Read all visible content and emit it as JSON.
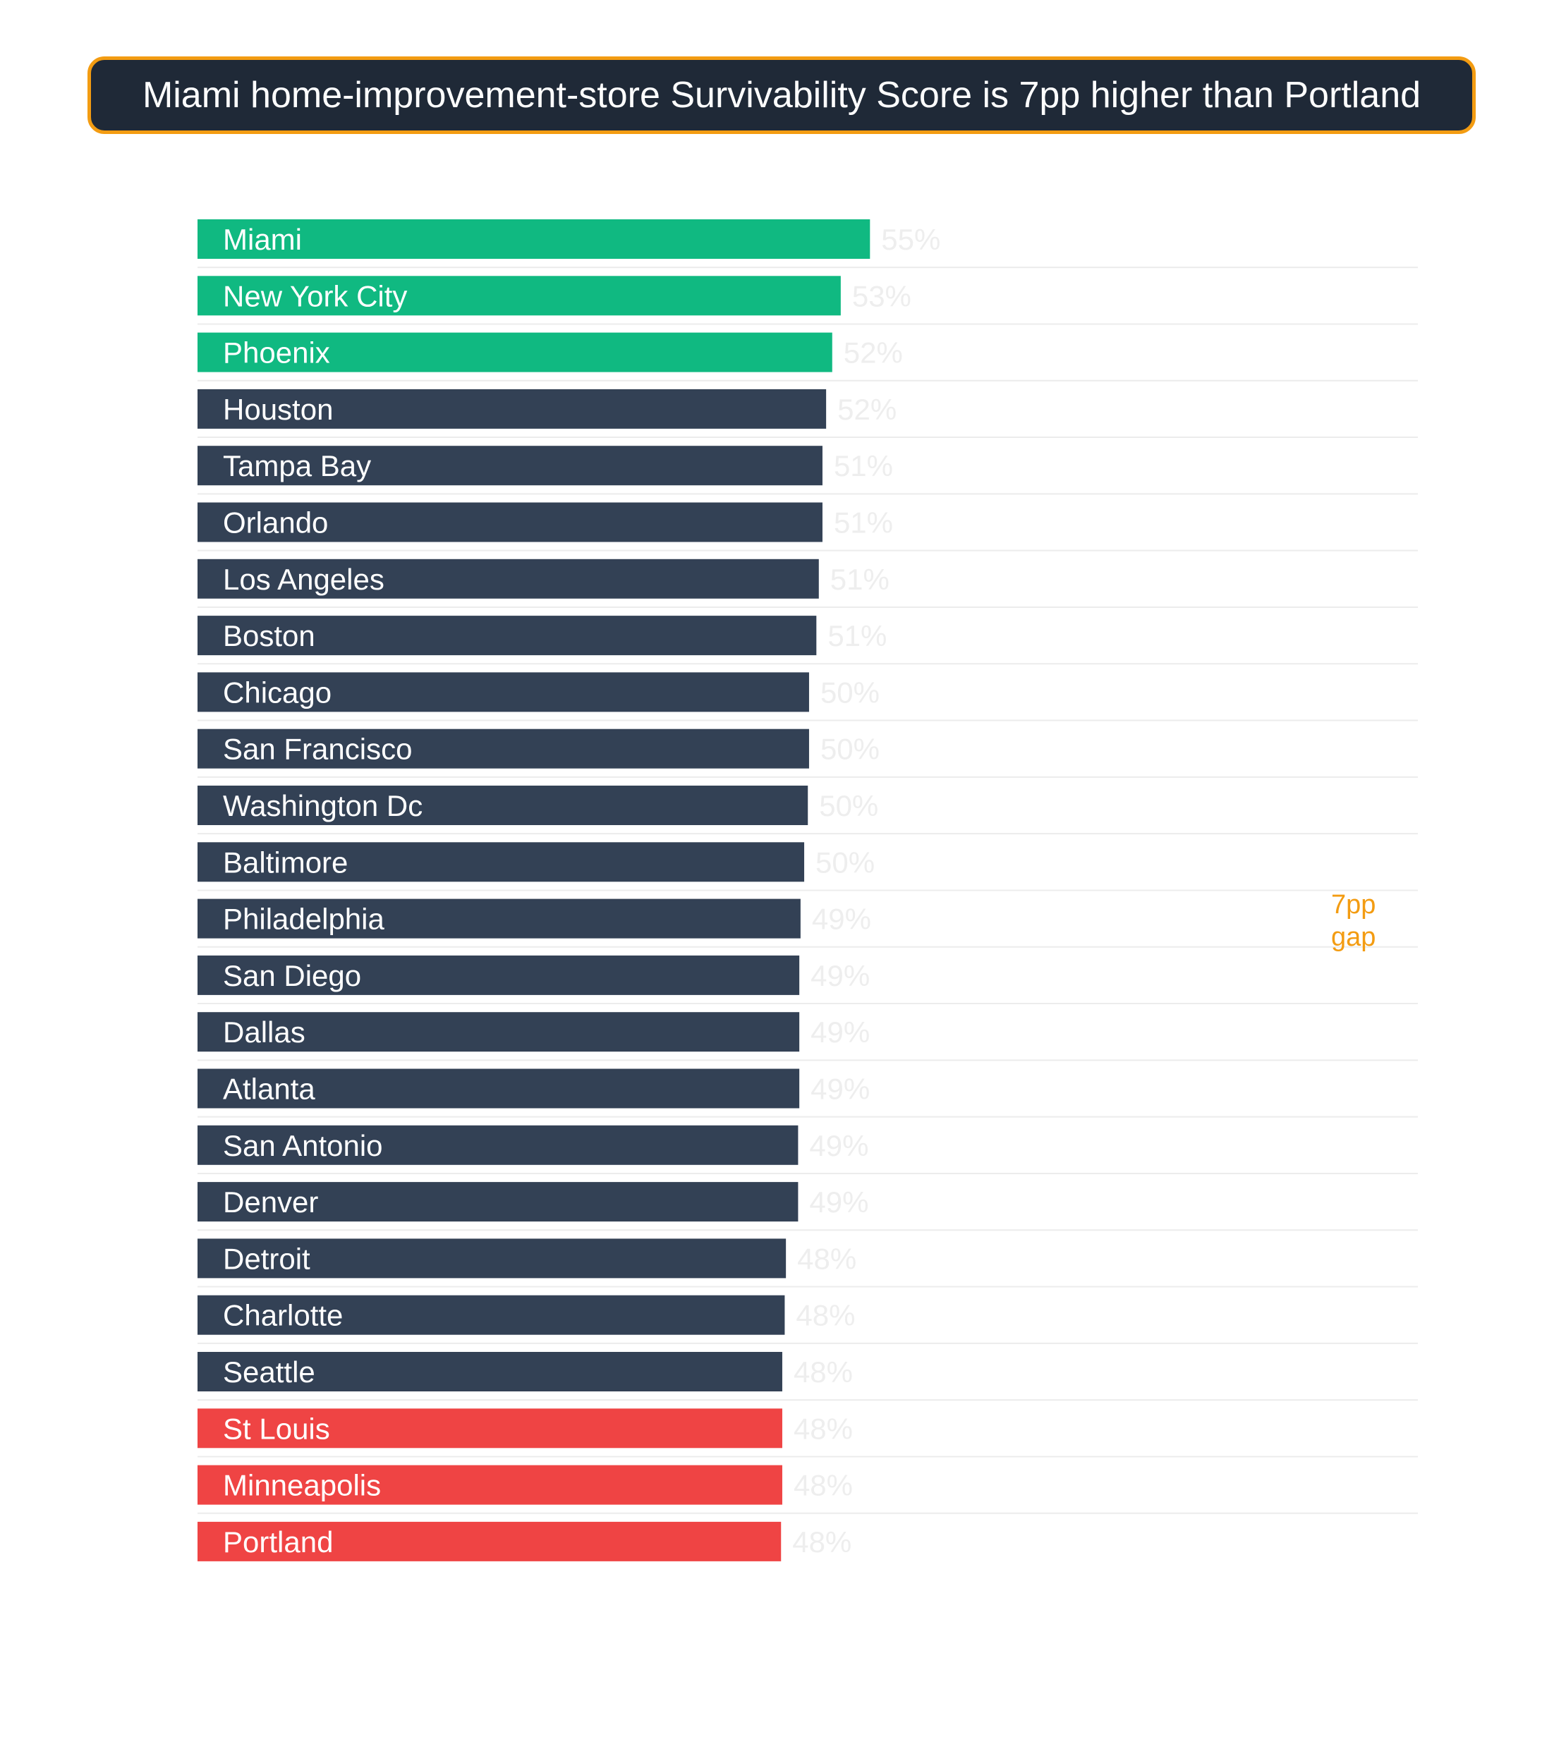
{
  "title": "Miami home-improvement-store Survivability Score is 7pp higher than Portland",
  "chart_data": {
    "type": "bar",
    "orientation": "horizontal",
    "categories": [
      "Miami",
      "New York City",
      "Phoenix",
      "Houston",
      "Tampa Bay",
      "Orlando",
      "Los Angeles",
      "Boston",
      "Chicago",
      "San Francisco",
      "Washington Dc",
      "Baltimore",
      "Philadelphia",
      "San Diego",
      "Dallas",
      "Atlanta",
      "San Antonio",
      "Denver",
      "Detroit",
      "Charlotte",
      "Seattle",
      "St Louis",
      "Minneapolis",
      "Portland"
    ],
    "values": [
      55.2,
      52.8,
      52.1,
      51.6,
      51.3,
      51.3,
      51.0,
      50.8,
      50.2,
      50.2,
      50.1,
      49.8,
      49.5,
      49.4,
      49.4,
      49.4,
      49.3,
      49.3,
      48.3,
      48.2,
      48.0,
      48.0,
      48.0,
      47.9
    ],
    "value_labels": [
      "55%",
      "53%",
      "52%",
      "52%",
      "51%",
      "51%",
      "51%",
      "51%",
      "50%",
      "50%",
      "50%",
      "50%",
      "49%",
      "49%",
      "49%",
      "49%",
      "49%",
      "49%",
      "48%",
      "48%",
      "48%",
      "48%",
      "48%",
      "48%"
    ],
    "bar_colors": [
      "#10b981",
      "#10b981",
      "#10b981",
      "#334155",
      "#334155",
      "#334155",
      "#334155",
      "#334155",
      "#334155",
      "#334155",
      "#334155",
      "#334155",
      "#334155",
      "#334155",
      "#334155",
      "#334155",
      "#334155",
      "#334155",
      "#334155",
      "#334155",
      "#334155",
      "#ef4444",
      "#ef4444",
      "#ef4444"
    ],
    "xlim": [
      0,
      100
    ],
    "annotation": "7pp gap",
    "xlabel": "",
    "ylabel": ""
  }
}
